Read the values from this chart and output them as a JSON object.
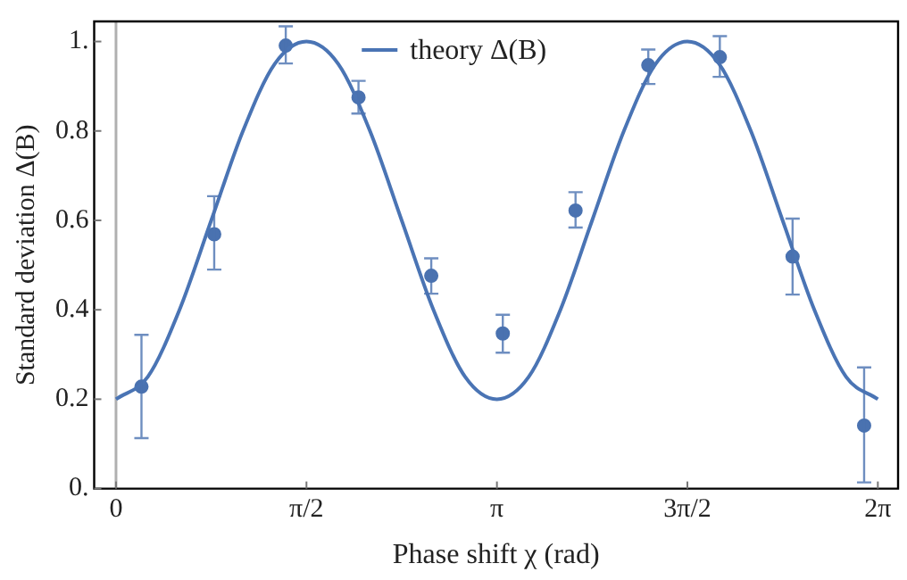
{
  "chart_data": {
    "type": "scatter",
    "xlabel": "Phase shift χ (rad)",
    "ylabel": "Standard deviation Δ(B)",
    "xlim": [
      -0.18,
      6.45
    ],
    "ylim": [
      0,
      1.045
    ],
    "xticks": [
      {
        "value": 0,
        "label": "0"
      },
      {
        "value": 1.5708,
        "label": "π/2"
      },
      {
        "value": 3.1416,
        "label": "π"
      },
      {
        "value": 4.7124,
        "label": "3π/2"
      },
      {
        "value": 6.2832,
        "label": "2π"
      }
    ],
    "yticks": [
      {
        "value": 0,
        "label": "0."
      },
      0.2,
      0.4,
      0.6,
      0.8,
      {
        "value": 1,
        "label": "1."
      }
    ],
    "grid": false,
    "legend": "top",
    "ref_lines": [
      {
        "axis": "x",
        "value": 0,
        "color": "#b0b0b0"
      }
    ],
    "series": [
      {
        "name": "theory Δ(B)",
        "type": "line",
        "color": "#4a74b4",
        "marker": "none",
        "x": [
          0,
          0.2618,
          0.5236,
          0.7854,
          1.0472,
          1.309,
          1.5708,
          1.8326,
          2.0944,
          2.3562,
          2.618,
          2.8798,
          3.1416,
          3.4034,
          3.6652,
          3.927,
          4.1888,
          4.4506,
          4.7124,
          4.9742,
          5.236,
          5.4978,
          5.7596,
          6.0214,
          6.2832
        ],
        "values": [
          0.2,
          0.25,
          0.4,
          0.6,
          0.8,
          0.95,
          1,
          0.95,
          0.8,
          0.6,
          0.4,
          0.25,
          0.2,
          0.25,
          0.4,
          0.6,
          0.8,
          0.95,
          1,
          0.95,
          0.8,
          0.6,
          0.4,
          0.25,
          0.2
        ]
      },
      {
        "type": "scatter",
        "color": "#4a72b0",
        "marker": "circle",
        "x": [
          0.21,
          0.81,
          1.4,
          2.0,
          2.6,
          3.19,
          3.79,
          4.39,
          4.98,
          5.58,
          6.17
        ],
        "values": [
          0.228,
          0.569,
          0.991,
          0.875,
          0.476,
          0.347,
          0.622,
          0.947,
          0.965,
          0.519,
          0.141
        ],
        "errors": [
          [
            0.113,
            0.344
          ],
          [
            0.49,
            0.654
          ],
          [
            0.951,
            1.034
          ],
          [
            0.839,
            0.912
          ],
          [
            0.436,
            0.515
          ],
          [
            0.304,
            0.389
          ],
          [
            0.584,
            0.663
          ],
          [
            0.905,
            0.982
          ],
          [
            0.921,
            1.012
          ],
          [
            0.434,
            0.604
          ],
          [
            0.014,
            0.271
          ]
        ]
      }
    ]
  }
}
